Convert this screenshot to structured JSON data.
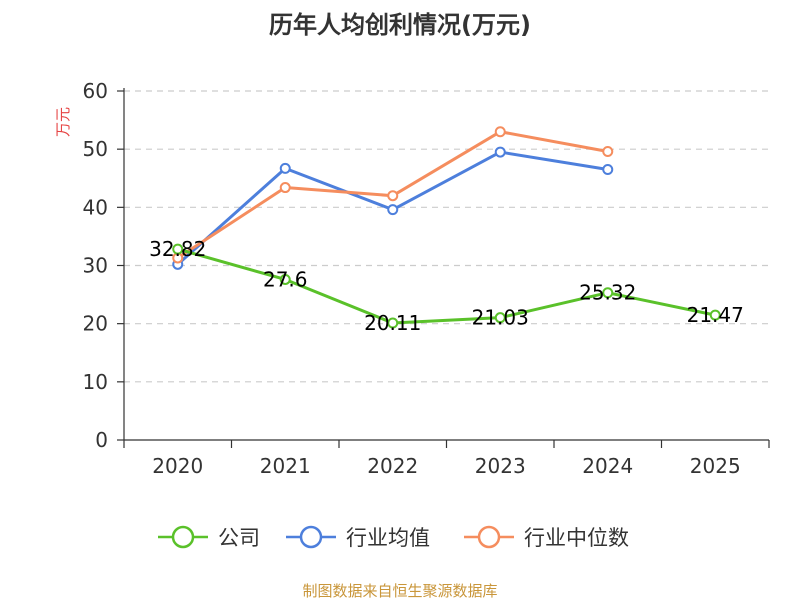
{
  "chart_data": {
    "type": "line",
    "title": "历年人均创利情况(万元)",
    "ylabel": "万元",
    "xlabel": "",
    "categories": [
      "2020",
      "2021",
      "2022",
      "2023",
      "2024",
      "2025"
    ],
    "ylim": [
      0,
      60
    ],
    "yticks": [
      0,
      10,
      20,
      30,
      40,
      50,
      60
    ],
    "grid": true,
    "legend_position": "bottom",
    "series": [
      {
        "name": "公司",
        "color": "#5ac12a",
        "values": [
          32.82,
          27.6,
          20.11,
          21.03,
          25.32,
          21.47
        ],
        "labels": [
          "32.82",
          "27.6",
          "20.11",
          "21.03",
          "25.32",
          "21.47"
        ]
      },
      {
        "name": "行业均值",
        "color": "#4d7fdc",
        "values": [
          30.2,
          46.7,
          39.6,
          49.5,
          46.5,
          null
        ]
      },
      {
        "name": "行业中位数",
        "color": "#f58d5e",
        "values": [
          31.3,
          43.4,
          42.0,
          53.0,
          49.6,
          null
        ]
      }
    ]
  },
  "colors": {
    "ylabel": "#e64545",
    "source": "#c9963a",
    "grid": "#cccccc",
    "axis": "#333333"
  },
  "footer": {
    "source": "制图数据来自恒生聚源数据库"
  }
}
